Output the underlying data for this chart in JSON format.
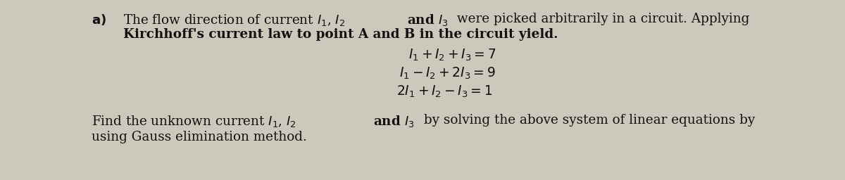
{
  "background_color": "#cdc8bc",
  "text_color": "#111111",
  "fig_width": 12.0,
  "fig_height": 2.56,
  "dpi": 100,
  "fs": 13.2,
  "eq_fs": 13.5
}
